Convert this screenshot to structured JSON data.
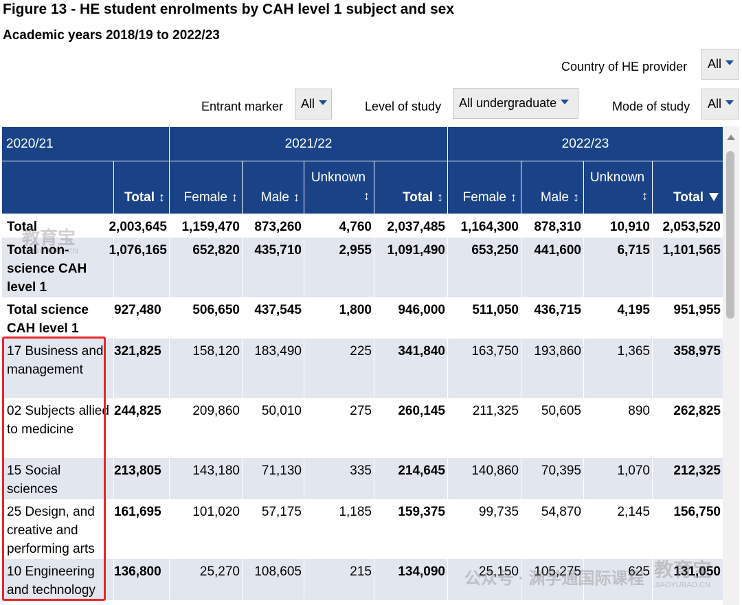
{
  "header": {
    "title": "Figure 13 - HE student enrolments by CAH level 1 subject and sex",
    "subtitle": "Academic years 2018/19 to 2022/23"
  },
  "filters": {
    "country": {
      "label": "Country of HE provider",
      "value": "All"
    },
    "entrant": {
      "label": "Entrant marker",
      "value": "All"
    },
    "level": {
      "label": "Level of study",
      "value": "All undergraduate"
    },
    "mode": {
      "label": "Mode of study",
      "value": "All"
    }
  },
  "table": {
    "years": [
      "2020/21",
      "2021/22",
      "2022/23"
    ],
    "columns": {
      "total": "Total",
      "female": "Female",
      "male": "Male",
      "unknown": "Unknown",
      "sort_glyph": "↕"
    },
    "rows": [
      {
        "label": "Total",
        "t20": "2,003,645",
        "f21": "1,159,470",
        "m21": "873,260",
        "u21": "4,760",
        "t21": "2,037,485",
        "f22": "1,164,300",
        "m22": "878,310",
        "u22": "10,910",
        "t22": "2,053,520"
      },
      {
        "label": "Total non-science CAH level 1",
        "t20": "1,076,165",
        "f21": "652,820",
        "m21": "435,710",
        "u21": "2,955",
        "t21": "1,091,490",
        "f22": "653,250",
        "m22": "441,600",
        "u22": "6,715",
        "t22": "1,101,565"
      },
      {
        "label": "Total science CAH level 1",
        "t20": "927,480",
        "f21": "506,650",
        "m21": "437,545",
        "u21": "1,800",
        "t21": "946,000",
        "f22": "511,050",
        "m22": "436,715",
        "u22": "4,195",
        "t22": "951,955"
      },
      {
        "label": "17 Business and management",
        "t20": "321,825",
        "f21": "158,120",
        "m21": "183,490",
        "u21": "225",
        "t21": "341,840",
        "f22": "163,750",
        "m22": "193,860",
        "u22": "1,365",
        "t22": "358,975"
      },
      {
        "label": "02 Subjects allied to medicine",
        "t20": "244,825",
        "f21": "209,860",
        "m21": "50,010",
        "u21": "275",
        "t21": "260,145",
        "f22": "211,325",
        "m22": "50,605",
        "u22": "890",
        "t22": "262,825"
      },
      {
        "label": "15 Social sciences",
        "t20": "213,805",
        "f21": "143,180",
        "m21": "71,130",
        "u21": "335",
        "t21": "214,645",
        "f22": "140,860",
        "m22": "70,395",
        "u22": "1,070",
        "t22": "212,325"
      },
      {
        "label": "25 Design, and creative and performing arts",
        "t20": "161,695",
        "f21": "101,020",
        "m21": "57,175",
        "u21": "1,185",
        "t21": "159,375",
        "f22": "99,735",
        "m22": "54,870",
        "u22": "2,145",
        "t22": "156,750"
      },
      {
        "label": "10 Engineering and technology",
        "t20": "136,800",
        "f21": "25,270",
        "m21": "108,605",
        "u21": "215",
        "t21": "134,090",
        "f22": "25,150",
        "m22": "105,275",
        "u22": "625",
        "t22": "131,050"
      }
    ]
  },
  "watermarks": {
    "brand": "教育宝",
    "brand_sub": "JIAOYUBAO.CN",
    "wechat": "公众号 · 渊学通国际课程"
  },
  "colors": {
    "header_bg": "#1a4387",
    "row_shade": "#e2e6ef",
    "highlight": "#e8262a"
  }
}
